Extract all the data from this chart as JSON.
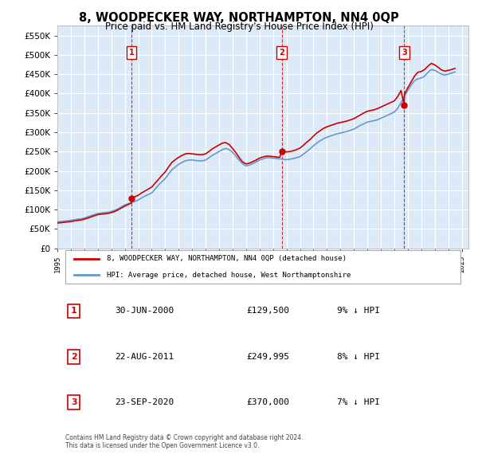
{
  "title": "8, WOODPECKER WAY, NORTHAMPTON, NN4 0QP",
  "subtitle": "Price paid vs. HM Land Registry's House Price Index (HPI)",
  "background_color": "#ffffff",
  "plot_bg_color": "#dce9f7",
  "grid_color": "#ffffff",
  "ylim": [
    0,
    575000
  ],
  "yticks": [
    0,
    50000,
    100000,
    150000,
    200000,
    250000,
    300000,
    350000,
    400000,
    450000,
    500000,
    550000
  ],
  "ylabel_format": "£{0}K",
  "x_start_year": 1995,
  "x_end_year": 2025,
  "sale_color": "#cc0000",
  "hpi_color": "#6699cc",
  "dashed_color": "#cc0000",
  "sale_marker_color": "#cc0000",
  "legend_sale_label": "8, WOODPECKER WAY, NORTHAMPTON, NN4 0QP (detached house)",
  "legend_hpi_label": "HPI: Average price, detached house, West Northamptonshire",
  "sales": [
    {
      "date_label": "30-JUN-2000",
      "price": 129500,
      "pct": "9%",
      "dir": "↓",
      "label": "1",
      "x": 2000.5
    },
    {
      "date_label": "22-AUG-2011",
      "price": 249995,
      "pct": "8%",
      "dir": "↓",
      "label": "2",
      "x": 2011.65
    },
    {
      "date_label": "23-SEP-2020",
      "price": 370000,
      "pct": "7%",
      "dir": "↓",
      "label": "3",
      "x": 2020.73
    }
  ],
  "footer": "Contains HM Land Registry data © Crown copyright and database right 2024.\nThis data is licensed under the Open Government Licence v3.0.",
  "hpi_x": [
    1995,
    1995.25,
    1995.5,
    1995.75,
    1996,
    1996.25,
    1996.5,
    1996.75,
    1997,
    1997.25,
    1997.5,
    1997.75,
    1998,
    1998.25,
    1998.5,
    1998.75,
    1999,
    1999.25,
    1999.5,
    1999.75,
    2000,
    2000.25,
    2000.5,
    2000.75,
    2001,
    2001.25,
    2001.5,
    2001.75,
    2002,
    2002.25,
    2002.5,
    2002.75,
    2003,
    2003.25,
    2003.5,
    2003.75,
    2004,
    2004.25,
    2004.5,
    2004.75,
    2005,
    2005.25,
    2005.5,
    2005.75,
    2006,
    2006.25,
    2006.5,
    2006.75,
    2007,
    2007.25,
    2007.5,
    2007.75,
    2008,
    2008.25,
    2008.5,
    2008.75,
    2009,
    2009.25,
    2009.5,
    2009.75,
    2010,
    2010.25,
    2010.5,
    2010.75,
    2011,
    2011.25,
    2011.5,
    2011.75,
    2012,
    2012.25,
    2012.5,
    2012.75,
    2013,
    2013.25,
    2013.5,
    2013.75,
    2014,
    2014.25,
    2014.5,
    2014.75,
    2015,
    2015.25,
    2015.5,
    2015.75,
    2016,
    2016.25,
    2016.5,
    2016.75,
    2017,
    2017.25,
    2017.5,
    2017.75,
    2018,
    2018.25,
    2018.5,
    2018.75,
    2019,
    2019.25,
    2019.5,
    2019.75,
    2020,
    2020.25,
    2020.5,
    2020.75,
    2021,
    2021.25,
    2021.5,
    2021.75,
    2022,
    2022.25,
    2022.5,
    2022.75,
    2023,
    2023.25,
    2023.5,
    2023.75,
    2024,
    2024.25,
    2024.5
  ],
  "hpi_y": [
    68000,
    69000,
    70000,
    71000,
    72000,
    73500,
    75000,
    76000,
    78000,
    81000,
    84000,
    87000,
    90000,
    91000,
    92000,
    93000,
    95000,
    98000,
    102000,
    107000,
    112000,
    115000,
    118000,
    121000,
    125000,
    130000,
    135000,
    139000,
    143000,
    153000,
    163000,
    172000,
    180000,
    192000,
    203000,
    210000,
    217000,
    222000,
    226000,
    228000,
    228000,
    227000,
    226000,
    226000,
    228000,
    234000,
    240000,
    245000,
    250000,
    255000,
    258000,
    255000,
    248000,
    238000,
    227000,
    218000,
    213000,
    215000,
    219000,
    223000,
    228000,
    231000,
    234000,
    234000,
    233000,
    232000,
    231000,
    230000,
    229000,
    230000,
    232000,
    234000,
    237000,
    243000,
    250000,
    257000,
    265000,
    272000,
    278000,
    283000,
    287000,
    290000,
    293000,
    296000,
    298000,
    300000,
    302000,
    305000,
    308000,
    313000,
    318000,
    322000,
    326000,
    328000,
    330000,
    332000,
    336000,
    340000,
    344000,
    348000,
    352000,
    362000,
    376000,
    393000,
    408000,
    422000,
    433000,
    438000,
    440000,
    445000,
    455000,
    462000,
    460000,
    455000,
    450000,
    448000,
    450000,
    453000,
    456000
  ],
  "sale_x": [
    1995,
    1995.25,
    1995.5,
    1995.75,
    1996,
    1996.25,
    1996.5,
    1996.75,
    1997,
    1997.25,
    1997.5,
    1997.75,
    1998,
    1998.25,
    1998.5,
    1998.75,
    1999,
    1999.25,
    1999.5,
    1999.75,
    2000,
    2000.25,
    2000.5,
    2000.5,
    2000.5,
    2000.75,
    2001,
    2001.25,
    2001.5,
    2001.75,
    2002,
    2002.25,
    2002.5,
    2002.75,
    2003,
    2003.25,
    2003.5,
    2003.75,
    2004,
    2004.25,
    2004.5,
    2004.75,
    2005,
    2005.25,
    2005.5,
    2005.75,
    2006,
    2006.25,
    2006.5,
    2006.75,
    2007,
    2007.25,
    2007.5,
    2007.75,
    2008,
    2008.25,
    2008.5,
    2008.75,
    2009,
    2009.25,
    2009.5,
    2009.75,
    2010,
    2010.25,
    2010.5,
    2010.75,
    2011,
    2011.25,
    2011.5,
    2011.65,
    2011.65,
    2011.65,
    2011.75,
    2012,
    2012.25,
    2012.5,
    2012.75,
    2013,
    2013.25,
    2013.5,
    2013.75,
    2014,
    2014.25,
    2014.5,
    2014.75,
    2015,
    2015.25,
    2015.5,
    2015.75,
    2016,
    2016.25,
    2016.5,
    2016.75,
    2017,
    2017.25,
    2017.5,
    2017.75,
    2018,
    2018.25,
    2018.5,
    2018.75,
    2019,
    2019.25,
    2019.5,
    2019.75,
    2020,
    2020.25,
    2020.5,
    2020.73,
    2020.73,
    2020.73,
    2020.75,
    2021,
    2021.25,
    2021.5,
    2021.75,
    2022,
    2022.25,
    2022.5,
    2022.75,
    2023,
    2023.25,
    2023.5,
    2023.75,
    2024,
    2024.25,
    2024.5
  ],
  "sale_y": [
    65000,
    66000,
    67000,
    68000,
    69000,
    70500,
    72000,
    73000,
    75000,
    78000,
    81000,
    84000,
    87000,
    88000,
    89000,
    90000,
    92000,
    95000,
    99000,
    104000,
    109000,
    113000,
    117000,
    129500,
    129500,
    133000,
    137000,
    143000,
    148000,
    153000,
    158000,
    168000,
    178000,
    188000,
    197000,
    210000,
    222000,
    229000,
    235000,
    240000,
    244000,
    245000,
    244000,
    243000,
    242000,
    242000,
    244000,
    250000,
    257000,
    262000,
    267000,
    272000,
    273000,
    268000,
    258000,
    247000,
    234000,
    223000,
    218000,
    220000,
    224000,
    228000,
    233000,
    236000,
    238000,
    238000,
    237000,
    236000,
    235000,
    249995,
    249995,
    249995,
    250000,
    249000,
    250000,
    252000,
    255000,
    259000,
    266000,
    274000,
    281000,
    290000,
    298000,
    304000,
    310000,
    314000,
    317000,
    320000,
    323000,
    325000,
    327000,
    329000,
    332000,
    335000,
    340000,
    345000,
    350000,
    354000,
    356000,
    358000,
    361000,
    365000,
    369000,
    373000,
    377000,
    381000,
    392000,
    408000,
    370000,
    370000,
    370000,
    398000,
    415000,
    430000,
    445000,
    455000,
    457000,
    462000,
    471000,
    478000,
    474000,
    468000,
    461000,
    458000,
    460000,
    462000,
    465000
  ]
}
